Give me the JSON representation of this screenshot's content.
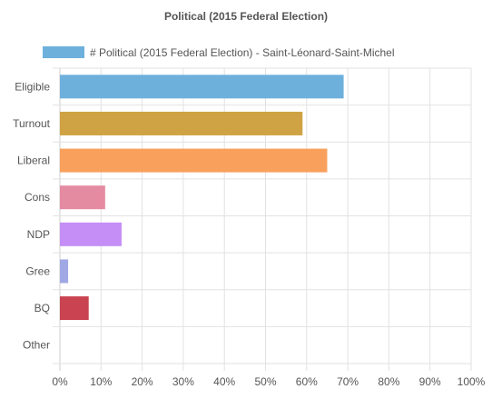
{
  "chart_data": {
    "type": "bar",
    "orientation": "horizontal",
    "title": "Political (2015 Federal Election)",
    "categories": [
      "Eligible",
      "Turnout",
      "Liberal",
      "Cons",
      "NDP",
      "Gree",
      "BQ",
      "Other"
    ],
    "series": [
      {
        "name": "# Political (2015 Federal Election) - Saint-Léonard-Saint-Michel",
        "values": [
          69,
          59,
          65,
          11,
          15,
          2,
          7,
          0
        ],
        "colors": [
          "#6eb0dc",
          "#cfa243",
          "#f9a05c",
          "#e48aa1",
          "#c48ef6",
          "#9fa8e4",
          "#c94350",
          "#bfbfbf"
        ]
      }
    ],
    "x_ticks": [
      "0%",
      "10%",
      "20%",
      "30%",
      "40%",
      "50%",
      "60%",
      "70%",
      "80%",
      "90%",
      "100%"
    ],
    "xlim": [
      0,
      100
    ],
    "unit": "%",
    "legend_position": "top",
    "legend_color": "#6eb0dc",
    "grid": true
  }
}
